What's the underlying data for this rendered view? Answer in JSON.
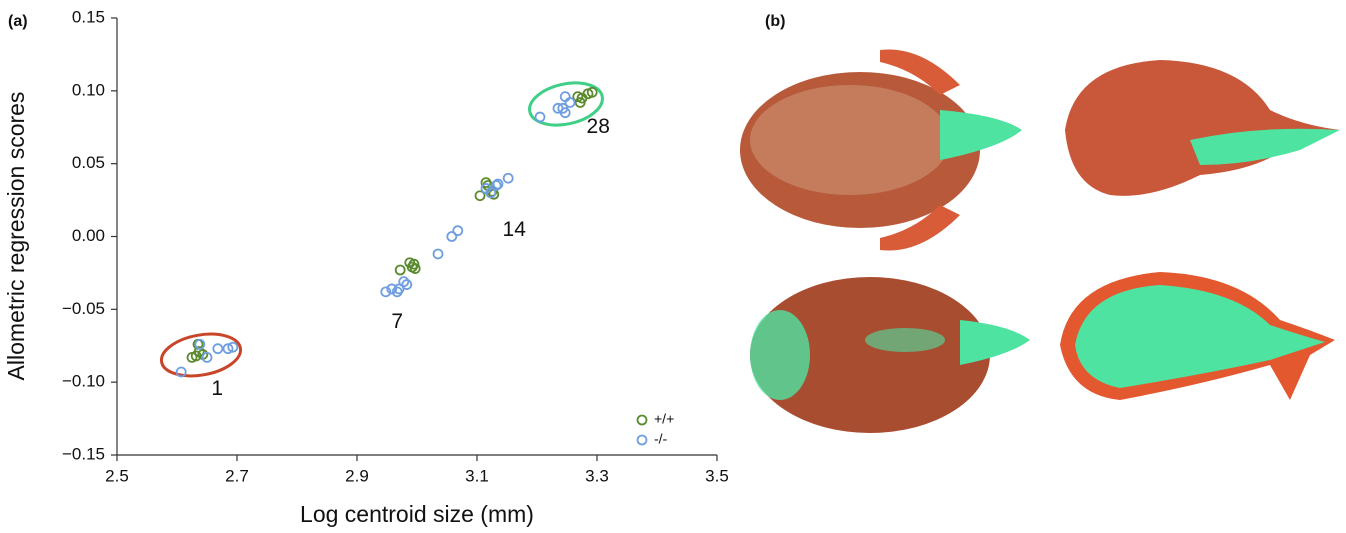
{
  "panel_labels": [
    "(a)",
    "(b)"
  ],
  "chart_data": {
    "type": "scatter",
    "xlabel": "Log centroid size (mm)",
    "ylabel": "Allometric regression scores",
    "xlim": [
      2.5,
      3.5
    ],
    "xticks": [
      2.5,
      2.7,
      2.9,
      3.1,
      3.3,
      3.5
    ],
    "ylim": [
      -0.15,
      0.15
    ],
    "yticks": [
      {
        "value": -0.15,
        "label": "−0.15"
      },
      {
        "value": -0.1,
        "label": "−0.10"
      },
      {
        "value": -0.05,
        "label": "−0.05"
      },
      {
        "value": 0,
        "label": "0.00"
      },
      0.05,
      {
        "value": 0.1,
        "label": "0.10"
      },
      0.15
    ],
    "legend": "lower right",
    "series": [
      {
        "name": "+/+",
        "color": "#5b8a2f",
        "x": [
          2.625,
          2.632,
          2.635,
          2.637,
          2.643,
          2.972,
          2.988,
          2.992,
          2.995,
          2.997,
          3.105,
          3.115,
          3.118,
          3.125,
          3.128,
          3.268,
          3.272,
          3.275,
          3.285,
          3.292
        ],
        "values": [
          -0.083,
          -0.082,
          -0.074,
          -0.079,
          -0.081,
          -0.023,
          -0.018,
          -0.021,
          -0.019,
          -0.022,
          0.028,
          0.037,
          0.035,
          0.031,
          0.029,
          0.096,
          0.092,
          0.095,
          0.098,
          0.099
        ]
      },
      {
        "name": "-/-",
        "color": "#6f9ee0",
        "x": [
          2.607,
          2.638,
          2.65,
          2.668,
          2.685,
          2.693,
          2.948,
          2.958,
          2.967,
          2.97,
          2.978,
          2.983,
          3.035,
          3.058,
          3.068,
          3.115,
          3.123,
          3.132,
          3.135,
          3.152,
          3.205,
          3.235,
          3.243,
          3.247,
          3.247,
          3.255
        ],
        "values": [
          -0.093,
          -0.074,
          -0.083,
          -0.077,
          -0.077,
          -0.076,
          -0.038,
          -0.036,
          -0.038,
          -0.036,
          -0.031,
          -0.033,
          -0.012,
          0,
          0.004,
          0.033,
          0.03,
          0.035,
          0.036,
          0.04,
          0.082,
          0.088,
          0.088,
          0.096,
          0.085,
          0.092
        ]
      }
    ],
    "annotations": [
      {
        "text": "1",
        "x": 2.667,
        "y": -0.105
      },
      {
        "text": "7",
        "x": 2.967,
        "y": -0.059
      },
      {
        "text": "14",
        "x": 3.162,
        "y": 0.004
      },
      {
        "text": "28",
        "x": 3.302,
        "y": 0.075
      }
    ]
  }
}
